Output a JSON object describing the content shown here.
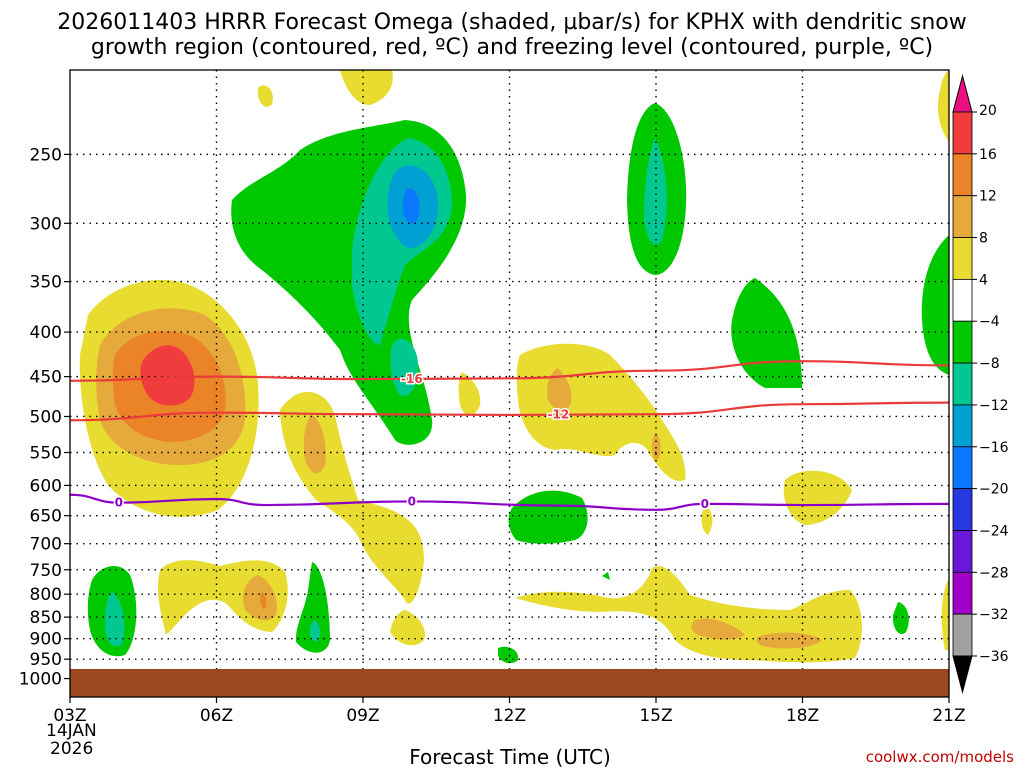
{
  "chart_data": {
    "type": "heatmap",
    "title_line1": "2026011403 HRRR Forecast Omega (shaded, µbar/s) for KPHX with dendritic snow",
    "title_line2": "growth region (contoured, red, ºC) and freezing level (contoured, purple, ºC)",
    "xlabel": "Forecast Time (UTC)",
    "ylabel": "",
    "x_hours": [
      3,
      21
    ],
    "y_pressure_range": [
      200,
      1050
    ],
    "x_ticks": [
      {
        "hour": 3,
        "label": "03Z"
      },
      {
        "hour": 6,
        "label": "06Z"
      },
      {
        "hour": 9,
        "label": "09Z"
      },
      {
        "hour": 12,
        "label": "12Z"
      },
      {
        "hour": 15,
        "label": "15Z"
      },
      {
        "hour": 18,
        "label": "18Z"
      },
      {
        "hour": 21,
        "label": "21Z"
      }
    ],
    "date_label_1": "14JAN",
    "date_label_2": "2026",
    "y_ticks": [
      250,
      300,
      350,
      400,
      450,
      500,
      550,
      600,
      650,
      700,
      750,
      800,
      850,
      900,
      950,
      1000
    ],
    "colorbar": {
      "labels": [
        "20",
        "16",
        "12",
        "8",
        "4",
        "−4",
        "−8",
        "−12",
        "−16",
        "−20",
        "−24",
        "−28",
        "−32",
        "−36"
      ],
      "colors": [
        "#ed0f82",
        "#f03c3c",
        "#eb8428",
        "#e6a93c",
        "#e8dc30",
        "#ffffff",
        "#00c800",
        "#00c890",
        "#00a0d2",
        "#0a78ff",
        "#2838e0",
        "#6818d8",
        "#a000c8",
        "#a0a0a0",
        "#000000"
      ]
    },
    "omega_fields": [
      {
        "name": "strong-ascent",
        "levels": [
          -4,
          -8,
          -12,
          -16
        ],
        "centers": [
          {
            "hour": 9.3,
            "p": 300,
            "peak": -16
          },
          {
            "hour": 10,
            "p": 460,
            "peak": -12
          },
          {
            "hour": 15,
            "p": 290,
            "peak": -12
          },
          {
            "hour": 4,
            "p": 880,
            "peak": -12
          }
        ]
      },
      {
        "name": "descent",
        "levels": [
          4,
          8,
          12,
          16
        ],
        "centers": [
          {
            "hour": 5,
            "p": 450,
            "peak": 20
          },
          {
            "hour": 7.3,
            "p": 840,
            "peak": 12
          },
          {
            "hour": 13.3,
            "p": 485,
            "peak": 12
          },
          {
            "hour": 16.5,
            "p": 895,
            "peak": 12
          }
        ]
      }
    ],
    "isotherms": [
      {
        "name": "-16C",
        "label": "-16",
        "color": "#ea3a3a",
        "points": [
          [
            3,
            455
          ],
          [
            6,
            450
          ],
          [
            9,
            453
          ],
          [
            12,
            452
          ],
          [
            15,
            443
          ],
          [
            18,
            432
          ],
          [
            21,
            437
          ]
        ]
      },
      {
        "name": "-12C",
        "label": "-12",
        "color": "#ea3a3a",
        "points": [
          [
            3,
            505
          ],
          [
            6,
            495
          ],
          [
            9,
            497
          ],
          [
            12,
            498
          ],
          [
            15,
            497
          ],
          [
            18,
            484
          ],
          [
            21,
            482
          ]
        ]
      },
      {
        "name": "0C",
        "label": "0",
        "color": "#8c00c8",
        "points": [
          [
            3,
            615
          ],
          [
            4,
            628
          ],
          [
            6,
            622
          ],
          [
            7,
            632
          ],
          [
            10,
            626
          ],
          [
            13,
            633
          ],
          [
            15,
            640
          ],
          [
            16,
            630
          ],
          [
            18,
            632
          ],
          [
            21,
            630
          ]
        ]
      }
    ],
    "ground": {
      "from_p": 975,
      "color": "#9a4820"
    }
  },
  "credit": "coolwx.com/models"
}
